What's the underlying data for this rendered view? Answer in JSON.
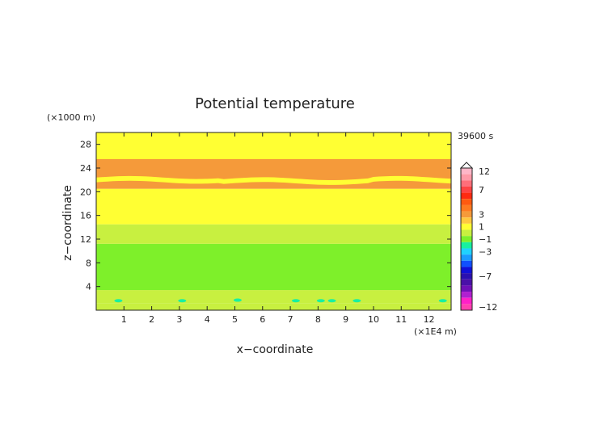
{
  "chart_data": {
    "type": "heatmap",
    "title": "Potential temperature",
    "xlabel": "x−coordinate",
    "ylabel": "z−coordinate",
    "x_unit": "(×1E4 m)",
    "y_unit": "(×1000 m)",
    "time_label": "39600 s",
    "xlim": [
      0,
      12.8
    ],
    "ylim": [
      0,
      30
    ],
    "x_ticks": [
      "1",
      "2",
      "3",
      "4",
      "5",
      "6",
      "7",
      "8",
      "9",
      "10",
      "11",
      "12"
    ],
    "y_ticks": [
      "4",
      "8",
      "12",
      "16",
      "20",
      "24",
      "28"
    ],
    "colorbar": {
      "labels": [
        "12",
        "7",
        "3",
        "1",
        "−1",
        "−3",
        "−7",
        "−12"
      ],
      "levels": [
        {
          "value": 12,
          "color": "#ffb6c8"
        },
        {
          "value": 10,
          "color": "#ff9aa8"
        },
        {
          "value": 8,
          "color": "#ff6f7a"
        },
        {
          "value": 7,
          "color": "#ff4444"
        },
        {
          "value": 6,
          "color": "#ff2a10"
        },
        {
          "value": 5,
          "color": "#ff5a10"
        },
        {
          "value": 4,
          "color": "#ff7a20"
        },
        {
          "value": 3,
          "color": "#f59a3a"
        },
        {
          "value": 2,
          "color": "#ffc840"
        },
        {
          "value": 1,
          "color": "#ffff33"
        },
        {
          "value": 0,
          "color": "#c8f040"
        },
        {
          "value": -1,
          "color": "#7ef02a"
        },
        {
          "value": -2,
          "color": "#18f0a0"
        },
        {
          "value": -3,
          "color": "#20d2ff"
        },
        {
          "value": -4,
          "color": "#1a9cff"
        },
        {
          "value": -5,
          "color": "#1050ff"
        },
        {
          "value": -6,
          "color": "#1010d8"
        },
        {
          "value": -7,
          "color": "#2a10b0"
        },
        {
          "value": -8,
          "color": "#4a10a8"
        },
        {
          "value": -9,
          "color": "#7010b8"
        },
        {
          "value": -10,
          "color": "#b020d0"
        },
        {
          "value": -11,
          "color": "#ff20c8"
        },
        {
          "value": -12,
          "color": "#ff40b0"
        }
      ]
    },
    "bands": [
      {
        "z0": 0,
        "z1": 1.2,
        "value": -0.5
      },
      {
        "z0": 1.2,
        "z1": 3.4,
        "value": -0.5
      },
      {
        "z0": 3.4,
        "z1": 11.2,
        "value": -1.5
      },
      {
        "z0": 11.2,
        "z1": 14.5,
        "value": -0.5
      },
      {
        "z0": 14.5,
        "z1": 20.5,
        "value": 0.5
      },
      {
        "z0": 20.5,
        "z1": 25.5,
        "value": 2.5
      },
      {
        "z0": 25.5,
        "z1": 30,
        "value": 0.5
      }
    ],
    "embedded_layer": {
      "z_center": 22.0,
      "thickness": 0.8,
      "value": 0.5
    },
    "patches": [
      {
        "x": 0.8,
        "z": 1.6,
        "value": -2.5
      },
      {
        "x": 3.1,
        "z": 1.6,
        "value": -2.5
      },
      {
        "x": 5.1,
        "z": 1.7,
        "value": -2.5
      },
      {
        "x": 7.2,
        "z": 1.6,
        "value": -2.5
      },
      {
        "x": 8.1,
        "z": 1.6,
        "value": -2.5
      },
      {
        "x": 8.5,
        "z": 1.6,
        "value": -2.5
      },
      {
        "x": 9.4,
        "z": 1.6,
        "value": -2.5
      },
      {
        "x": 12.5,
        "z": 1.6,
        "value": -2.5
      }
    ]
  }
}
